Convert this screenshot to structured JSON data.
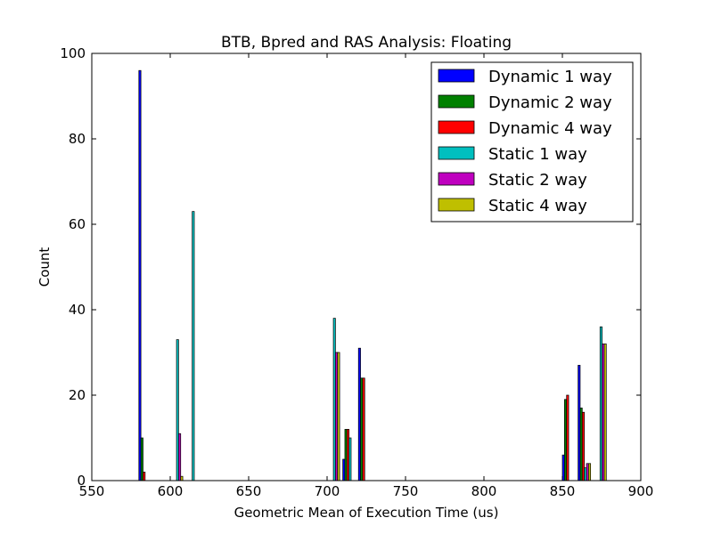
{
  "chart_data": {
    "type": "bar",
    "title": "BTB, Bpred and RAS Analysis: Floating",
    "xlabel": "Geometric Mean of Execution Time (us)",
    "ylabel": "Count",
    "xlim": [
      550,
      900
    ],
    "ylim": [
      0,
      100
    ],
    "xticks": [
      550,
      600,
      650,
      700,
      750,
      800,
      850,
      900
    ],
    "yticks": [
      0,
      20,
      40,
      60,
      80,
      100
    ],
    "legend_position": "top-right",
    "bin_start": 580,
    "bin_width": 10,
    "series": [
      {
        "name": "Dynamic 1 way",
        "color": "#0000ff",
        "values": [
          96,
          0,
          0,
          0,
          0,
          0,
          0,
          0,
          0,
          0,
          0,
          0,
          0,
          5,
          31,
          0,
          0,
          0,
          0,
          0,
          0,
          0,
          0,
          0,
          0,
          0,
          0,
          6,
          27,
          0
        ]
      },
      {
        "name": "Dynamic 2 way",
        "color": "#008000",
        "values": [
          10,
          0,
          0,
          0,
          0,
          0,
          0,
          0,
          0,
          0,
          0,
          0,
          0,
          12,
          24,
          0,
          0,
          0,
          0,
          0,
          0,
          0,
          0,
          0,
          0,
          0,
          0,
          19,
          17,
          0
        ]
      },
      {
        "name": "Dynamic 4 way",
        "color": "#ff0000",
        "values": [
          2,
          0,
          0,
          0,
          0,
          0,
          0,
          0,
          0,
          0,
          0,
          0,
          0,
          12,
          24,
          0,
          0,
          0,
          0,
          0,
          0,
          0,
          0,
          0,
          0,
          0,
          0,
          20,
          16,
          0
        ]
      },
      {
        "name": "Static 1 way",
        "color": "#00bfbf",
        "values": [
          0,
          0,
          33,
          63,
          0,
          0,
          0,
          0,
          0,
          0,
          0,
          0,
          38,
          10,
          0,
          0,
          0,
          0,
          0,
          0,
          0,
          0,
          0,
          0,
          0,
          0,
          0,
          0,
          3,
          36
        ]
      },
      {
        "name": "Static 2 way",
        "color": "#bf00bf",
        "values": [
          0,
          0,
          11,
          0,
          0,
          0,
          0,
          0,
          0,
          0,
          0,
          0,
          30,
          0,
          0,
          0,
          0,
          0,
          0,
          0,
          0,
          0,
          0,
          0,
          0,
          0,
          0,
          0,
          4,
          32
        ]
      },
      {
        "name": "Static 4 way",
        "color": "#bfbf00",
        "values": [
          0,
          0,
          1,
          0,
          0,
          0,
          0,
          0,
          0,
          0,
          0,
          0,
          30,
          0,
          0,
          0,
          0,
          0,
          0,
          0,
          0,
          0,
          0,
          0,
          0,
          0,
          0,
          0,
          4,
          32
        ]
      }
    ]
  }
}
